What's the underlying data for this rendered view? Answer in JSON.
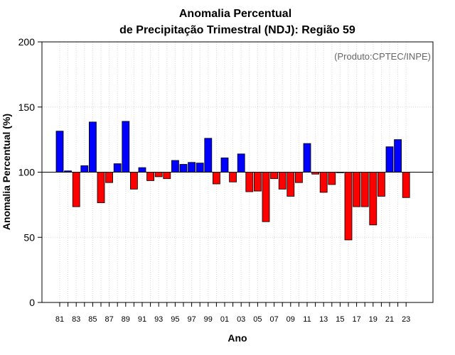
{
  "chart_data": {
    "type": "bar",
    "title_line1": "Anomalia Percentual",
    "title_line2": "de Precipitação Trimestral (NDJ): Região 59",
    "xlabel": "Ano",
    "ylabel": "Anomalia Percentual (%)",
    "credit": "(Produto:CPTEC/INPE)",
    "ylim": [
      0,
      200
    ],
    "yticks": [
      0,
      50,
      100,
      150,
      200
    ],
    "baseline": 100,
    "colors": {
      "above": "#0000ff",
      "below": "#ff0000",
      "outline": "#000000"
    },
    "grid": true,
    "categories": [
      "81",
      "82",
      "83",
      "84",
      "85",
      "86",
      "87",
      "88",
      "89",
      "90",
      "91",
      "92",
      "93",
      "94",
      "95",
      "96",
      "97",
      "98",
      "99",
      "00",
      "01",
      "02",
      "03",
      "04",
      "05",
      "06",
      "07",
      "08",
      "09",
      "10",
      "11",
      "12",
      "13",
      "14",
      "15",
      "16",
      "17",
      "18",
      "19",
      "20",
      "21",
      "22",
      "23"
    ],
    "xtick_labels": [
      "81",
      "83",
      "85",
      "87",
      "89",
      "91",
      "93",
      "95",
      "97",
      "99",
      "01",
      "03",
      "05",
      "07",
      "09",
      "11",
      "13",
      "15",
      "17",
      "19",
      "21",
      "23"
    ],
    "values": [
      131.5,
      101,
      73.5,
      105,
      138.5,
      76.5,
      92,
      106.5,
      139,
      87,
      103.5,
      93.5,
      96.5,
      95,
      109,
      106,
      107.5,
      107,
      126,
      91,
      111,
      92.5,
      114,
      85,
      85.5,
      62,
      95,
      87,
      81.5,
      92,
      122,
      98.5,
      84.5,
      90.5,
      100,
      48,
      73.5,
      73.5,
      59.5,
      81.5,
      119.5,
      125,
      80.5
    ]
  }
}
